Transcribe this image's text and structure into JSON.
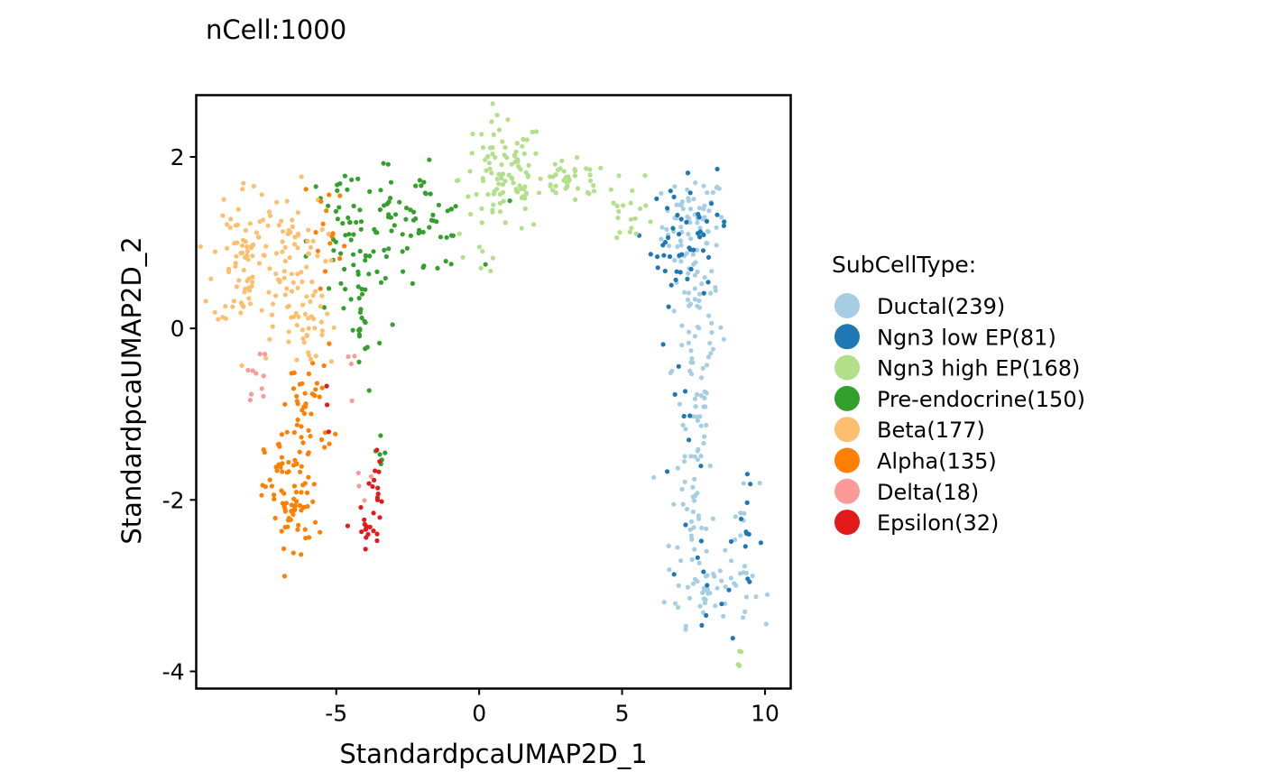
{
  "chart_data": {
    "type": "scatter",
    "subtitle": "nCell:1000",
    "xlabel": "StandardpcaUMAP2D_1",
    "ylabel": "StandardpcaUMAP2D_2",
    "xlim": [
      -9.9,
      10.9
    ],
    "ylim": [
      -4.2,
      2.72
    ],
    "xticks": [
      -5,
      0,
      5,
      10
    ],
    "yticks": [
      2,
      0,
      -2,
      -4
    ],
    "xtick_labels": [
      "-5",
      "0",
      "5",
      "10"
    ],
    "ytick_labels": [
      "2",
      "0",
      "-2",
      "-4"
    ],
    "grid": false,
    "legend": {
      "title": "SubCellType:",
      "placement": "right",
      "entries": [
        "Ductal(239)",
        "Ngn3 low EP(81)",
        "Ngn3 high EP(168)",
        "Pre-endocrine(150)",
        "Beta(177)",
        "Alpha(135)",
        "Delta(18)",
        "Epsilon(32)"
      ]
    },
    "series": [
      {
        "color": "#A6CEE3",
        "count": 239,
        "clusters": [
          {
            "cx": 7.5,
            "cy": 1.2,
            "sx": 0.55,
            "sy": 0.3,
            "n": 70
          },
          {
            "cx": 7.6,
            "cy": 0.1,
            "sx": 0.45,
            "sy": 0.4,
            "n": 45
          },
          {
            "cx": 7.5,
            "cy": -1.0,
            "sx": 0.35,
            "sy": 0.45,
            "n": 35
          },
          {
            "cx": 7.5,
            "cy": -2.2,
            "sx": 0.4,
            "sy": 0.4,
            "n": 30
          },
          {
            "cx": 8.0,
            "cy": -3.05,
            "sx": 0.75,
            "sy": 0.2,
            "n": 45
          },
          {
            "cx": 9.2,
            "cy": -2.5,
            "sx": 0.3,
            "sy": 0.4,
            "n": 14
          }
        ]
      },
      {
        "color": "#1F78B4",
        "count": 81,
        "clusters": [
          {
            "cx": 6.9,
            "cy": 1.0,
            "sx": 0.45,
            "sy": 0.35,
            "n": 35
          },
          {
            "cx": 8.0,
            "cy": 1.2,
            "sx": 0.35,
            "sy": 0.3,
            "n": 15
          },
          {
            "cx": 7.3,
            "cy": -1.6,
            "sx": 0.5,
            "sy": 0.6,
            "n": 12
          },
          {
            "cx": 9.3,
            "cy": -2.4,
            "sx": 0.3,
            "sy": 0.3,
            "n": 12
          },
          {
            "cx": 8.2,
            "cy": -3.1,
            "sx": 0.3,
            "sy": 0.2,
            "n": 7
          }
        ]
      },
      {
        "color": "#B2DF8A",
        "count": 168,
        "clusters": [
          {
            "cx": 0.8,
            "cy": 1.75,
            "sx": 0.75,
            "sy": 0.35,
            "n": 95
          },
          {
            "cx": 3.2,
            "cy": 1.7,
            "sx": 0.7,
            "sy": 0.12,
            "n": 42
          },
          {
            "cx": 5.3,
            "cy": 1.4,
            "sx": 0.45,
            "sy": 0.2,
            "n": 20
          },
          {
            "cx": 0.1,
            "cy": 0.85,
            "sx": 0.3,
            "sy": 0.1,
            "n": 6
          },
          {
            "cx": 9.1,
            "cy": -3.85,
            "sx": 0.05,
            "sy": 0.06,
            "n": 5
          }
        ]
      },
      {
        "color": "#33A02C",
        "count": 150,
        "clusters": [
          {
            "cx": -2.4,
            "cy": 1.25,
            "sx": 1.1,
            "sy": 0.3,
            "n": 60
          },
          {
            "cx": -4.6,
            "cy": 1.0,
            "sx": 0.7,
            "sy": 0.45,
            "n": 55
          },
          {
            "cx": -4.1,
            "cy": 0.0,
            "sx": 0.35,
            "sy": 0.4,
            "n": 20
          },
          {
            "cx": -3.5,
            "cy": -1.45,
            "sx": 0.12,
            "sy": 0.15,
            "n": 6
          },
          {
            "cx": -1.3,
            "cy": 0.95,
            "sx": 0.8,
            "sy": 0.3,
            "n": 9
          }
        ]
      },
      {
        "color": "#FDBF6F",
        "count": 177,
        "clusters": [
          {
            "cx": -8.2,
            "cy": 0.85,
            "sx": 0.55,
            "sy": 0.45,
            "n": 80
          },
          {
            "cx": -6.6,
            "cy": 0.6,
            "sx": 0.6,
            "sy": 0.5,
            "n": 85
          },
          {
            "cx": -5.6,
            "cy": 0.0,
            "sx": 0.3,
            "sy": 0.3,
            "n": 12
          }
        ]
      },
      {
        "color": "#FF7F00",
        "count": 135,
        "clusters": [
          {
            "cx": -6.6,
            "cy": -2.0,
            "sx": 0.45,
            "sy": 0.4,
            "n": 80
          },
          {
            "cx": -6.0,
            "cy": -0.9,
            "sx": 0.45,
            "sy": 0.35,
            "n": 40
          },
          {
            "cx": -5.3,
            "cy": 1.2,
            "sx": 0.4,
            "sy": 0.35,
            "n": 15
          }
        ]
      },
      {
        "color": "#FB9A99",
        "count": 18,
        "clusters": [
          {
            "cx": -7.7,
            "cy": -0.55,
            "sx": 0.2,
            "sy": 0.15,
            "n": 10
          },
          {
            "cx": -4.5,
            "cy": -0.5,
            "sx": 0.15,
            "sy": 0.2,
            "n": 4
          },
          {
            "cx": -4.1,
            "cy": -1.8,
            "sx": 0.2,
            "sy": 0.25,
            "n": 4
          }
        ]
      },
      {
        "color": "#E31A1C",
        "count": 32,
        "clusters": [
          {
            "cx": -4.0,
            "cy": -2.35,
            "sx": 0.2,
            "sy": 0.12,
            "n": 16
          },
          {
            "cx": -3.6,
            "cy": -1.8,
            "sx": 0.2,
            "sy": 0.25,
            "n": 13
          },
          {
            "cx": -5.3,
            "cy": -0.8,
            "sx": 0.1,
            "sy": 0.2,
            "n": 3
          }
        ]
      }
    ]
  }
}
